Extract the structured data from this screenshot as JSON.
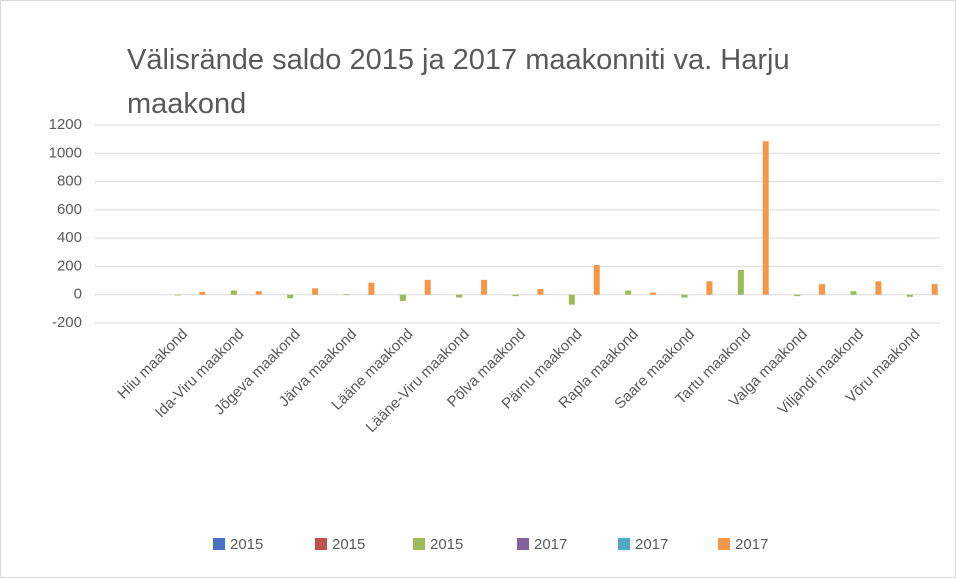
{
  "chart_data": {
    "type": "bar",
    "title": "Välisrände saldo 2015 ja 2017 maakonniti va. Harju maakond",
    "categories": [
      null,
      "Hiiu maakond",
      "Ida-Viru maakond",
      "Jõgeva maakond",
      "Järva maakond",
      "Lääne maakond",
      "Lääne-Viru maakond",
      "Põlva maakond",
      "Pärnu maakond",
      "Rapla maakond",
      "Saare maakond",
      "Tartu maakond",
      "Valga maakond",
      "Viljandi maakond",
      "Võru maakond"
    ],
    "series": [
      {
        "name": "2015",
        "color": "#4472c4",
        "values": [
          null,
          null,
          null,
          null,
          null,
          null,
          null,
          null,
          null,
          null,
          null,
          null,
          null,
          null,
          null
        ]
      },
      {
        "name": "2015",
        "color": "#c0504d",
        "values": [
          null,
          null,
          null,
          null,
          null,
          null,
          null,
          null,
          null,
          null,
          null,
          null,
          null,
          null,
          null
        ]
      },
      {
        "name": "2015",
        "color": "#9bbb59",
        "values": [
          null,
          -5,
          30,
          -25,
          5,
          -45,
          -20,
          -10,
          -70,
          30,
          -20,
          175,
          -10,
          25,
          -15
        ]
      },
      {
        "name": "2017",
        "color": "#8064a2",
        "values": [
          null,
          null,
          null,
          null,
          null,
          null,
          null,
          null,
          null,
          null,
          null,
          null,
          null,
          null,
          null
        ]
      },
      {
        "name": "2017",
        "color": "#4bacc6",
        "values": [
          null,
          null,
          null,
          null,
          null,
          null,
          null,
          null,
          null,
          null,
          null,
          null,
          null,
          null,
          null
        ]
      },
      {
        "name": "2017",
        "color": "#f79646",
        "values": [
          null,
          20,
          25,
          45,
          85,
          105,
          105,
          40,
          210,
          15,
          95,
          1085,
          75,
          95,
          75
        ]
      }
    ],
    "ylim": [
      -200,
      1200
    ],
    "yticks": [
      -200,
      0,
      200,
      400,
      600,
      800,
      1000,
      1200
    ],
    "grid": true,
    "legend": "bottom"
  }
}
